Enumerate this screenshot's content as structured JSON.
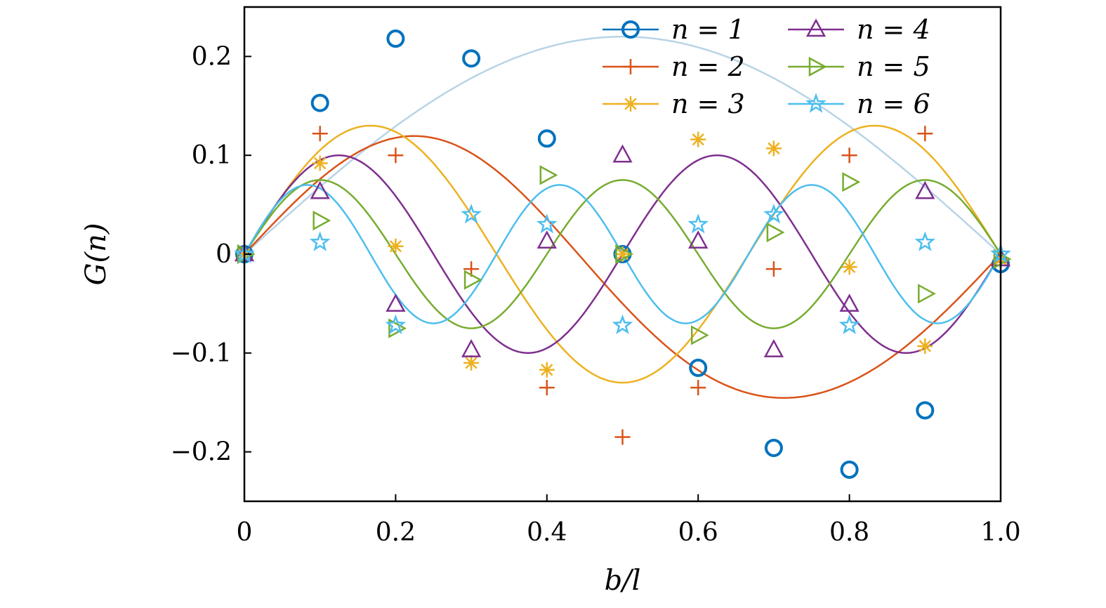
{
  "chart_data": {
    "type": "line",
    "xlabel": "b/l",
    "ylabel": "G(n)",
    "xlim": [
      0,
      1.0
    ],
    "ylim": [
      -0.25,
      0.25
    ],
    "xticks": [
      0,
      0.2,
      0.4,
      0.6,
      0.8,
      1.0
    ],
    "xtick_labels": [
      "0",
      "0.2",
      "0.4",
      "0.6",
      "0.8",
      "1.0"
    ],
    "yticks": [
      -0.2,
      -0.1,
      0,
      0.1,
      0.2
    ],
    "ytick_labels": [
      "−0.2",
      "−0.1",
      "0",
      "0.1",
      "0.2"
    ],
    "grid": false,
    "legend_placement": "top-right",
    "x": [
      0,
      0.1,
      0.2,
      0.3,
      0.4,
      0.5,
      0.6,
      0.7,
      0.8,
      0.9,
      1.0
    ],
    "series": [
      {
        "name": "n = 1",
        "marker": "circle",
        "color": "#0072BD",
        "line_color": "#B8D4E6",
        "values": [
          0,
          0.153,
          0.218,
          0.198,
          0.117,
          0,
          -0.115,
          -0.196,
          -0.218,
          -0.158,
          -0.01
        ],
        "curve_amplitude": 0.22
      },
      {
        "name": "n = 2",
        "marker": "plus",
        "color": "#D95319",
        "line_color": "#D95319",
        "values": [
          0,
          0.122,
          0.1,
          -0.015,
          -0.135,
          -0.185,
          -0.135,
          -0.015,
          0.1,
          0.122,
          -0.008
        ],
        "curve_amplitude": 0.13
      },
      {
        "name": "n = 3",
        "marker": "asterisk",
        "color": "#EDB120",
        "line_color": "#EDB120",
        "values": [
          0,
          0.092,
          0.008,
          -0.11,
          -0.117,
          0,
          0.116,
          0.107,
          -0.013,
          -0.093,
          -0.005
        ],
        "curve_amplitude": 0.13
      },
      {
        "name": "n = 4",
        "marker": "triangle-up",
        "color": "#7E2F8E",
        "line_color": "#7E2F8E",
        "values": [
          0,
          0.063,
          -0.051,
          -0.097,
          0.013,
          0.1,
          0.013,
          -0.097,
          -0.051,
          0.063,
          -0.005
        ],
        "curve_amplitude": 0.1
      },
      {
        "name": "n = 5",
        "marker": "triangle-right",
        "color": "#77AC30",
        "line_color": "#77AC30",
        "values": [
          0,
          0.034,
          -0.075,
          -0.026,
          0.08,
          0,
          -0.082,
          0.022,
          0.073,
          -0.04,
          -0.005
        ],
        "curve_amplitude": 0.082
      },
      {
        "name": "n = 6",
        "marker": "star",
        "color": "#4DBEEE",
        "line_color": "#4DBEEE",
        "values": [
          0,
          0.012,
          -0.072,
          0.04,
          0.03,
          -0.072,
          0.03,
          0.04,
          -0.072,
          0.012,
          0
        ],
        "curve_amplitude": 0.07
      }
    ]
  }
}
